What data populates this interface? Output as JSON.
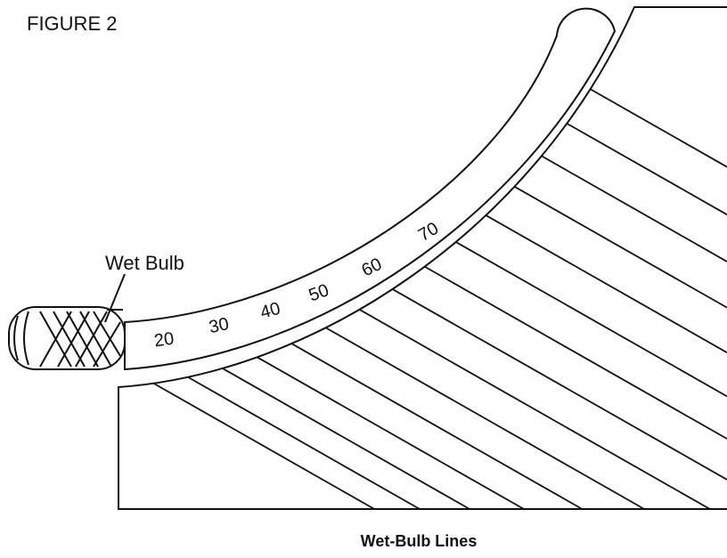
{
  "figure_label": "FIGURE 2",
  "bulb_label": "Wet Bulb",
  "scale_labels": [
    "20",
    "30",
    "40",
    "50",
    "60",
    "70"
  ],
  "caption": "Wet-Bulb Lines"
}
